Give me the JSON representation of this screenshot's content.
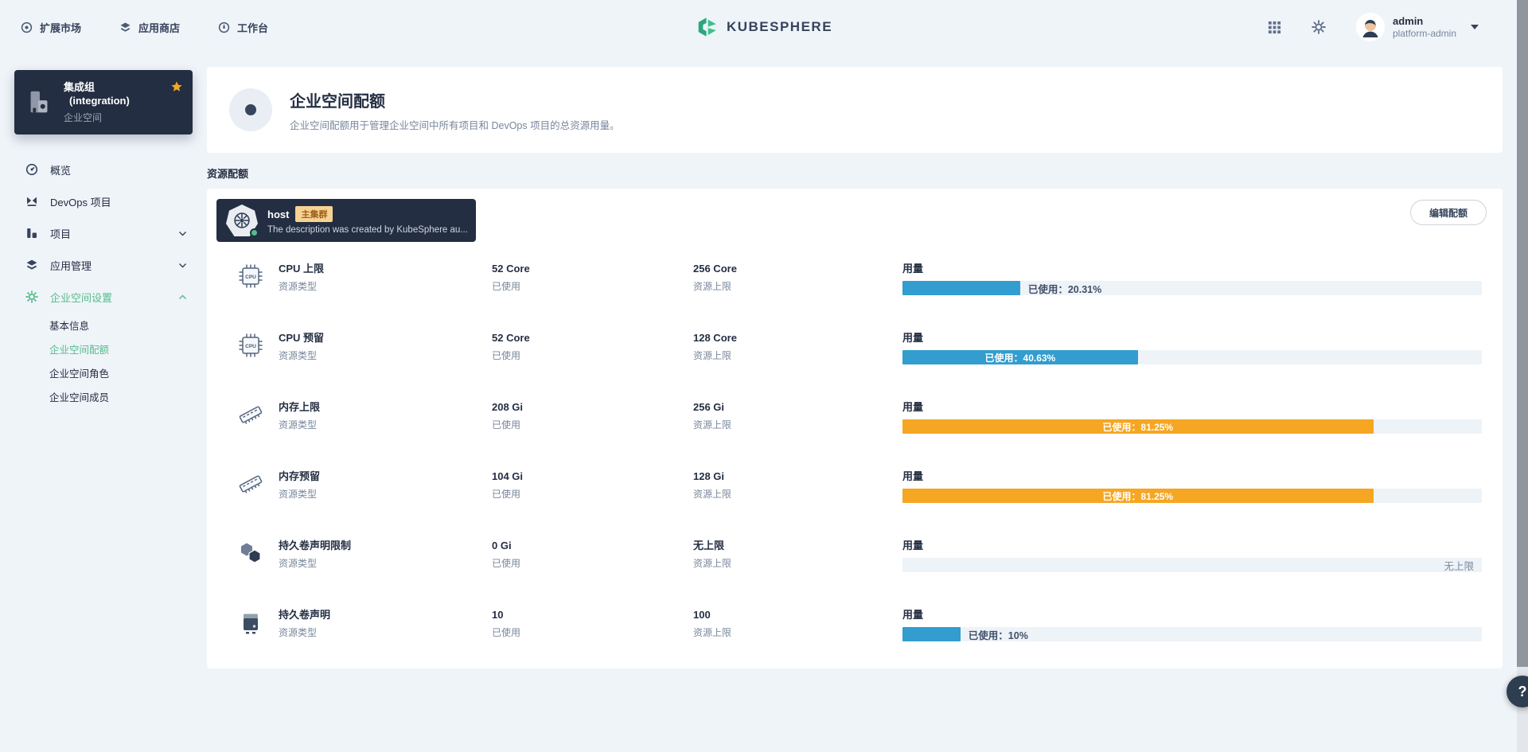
{
  "app": {
    "logo_text": "KUBESPHERE"
  },
  "colors": {
    "accent_green": "#55bc8a",
    "bar_blue": "#329dce",
    "bar_orange": "#f5a623",
    "dark_navy": "#242e42",
    "badge_bg": "#f6d392"
  },
  "topbar": {
    "nav_items": [
      {
        "icon": "extension-market-icon",
        "label": "扩展市场"
      },
      {
        "icon": "app-store-icon",
        "label": "应用商店"
      },
      {
        "icon": "workbench-icon",
        "label": "工作台"
      }
    ],
    "user": {
      "name": "admin",
      "role": "platform-admin"
    }
  },
  "sidebar": {
    "workspace_card": {
      "title": "集成组",
      "name": "(integration)",
      "type_label": "企业空间"
    },
    "menu_items": [
      {
        "icon": "overview-icon",
        "label": "概览"
      },
      {
        "icon": "devops-icon",
        "label": "DevOps 项目"
      },
      {
        "icon": "projects-icon",
        "label": "项目",
        "chevron": "down"
      },
      {
        "icon": "app-management-icon",
        "label": "应用管理",
        "chevron": "down"
      },
      {
        "icon": "settings-icon",
        "label": "企业空间设置",
        "chevron": "up",
        "active": true
      }
    ],
    "submenu_items": [
      {
        "label": "基本信息"
      },
      {
        "label": "企业空间配额",
        "active": true
      },
      {
        "label": "企业空间角色"
      },
      {
        "label": "企业空间成员"
      }
    ]
  },
  "page_header": {
    "title": "企业空间配额",
    "description": "企业空间配额用于管理企业空间中所有项目和 DevOps 项目的总资源用量。"
  },
  "quota_section": {
    "section_label": "资源配额",
    "cluster": {
      "name": "host",
      "badge": "主集群",
      "description": "The description was created by KubeSphere au..."
    },
    "edit_button_label": "编辑配额",
    "rows": [
      {
        "icon": "cpu-icon",
        "name": "CPU 上限",
        "type_label": "资源类型",
        "used_value": "52 Core",
        "used_label": "已使用",
        "limit_value": "256 Core",
        "limit_label": "资源上限",
        "usage_label": "用量",
        "percent": 20.31,
        "bar_color": "#329dce",
        "bar_text": "已使用：20.31%",
        "bar_text_style": "outside"
      },
      {
        "icon": "cpu-icon",
        "name": "CPU 预留",
        "type_label": "资源类型",
        "used_value": "52 Core",
        "used_label": "已使用",
        "limit_value": "128 Core",
        "limit_label": "资源上限",
        "usage_label": "用量",
        "percent": 40.63,
        "bar_color": "#329dce",
        "bar_text": "已使用：40.63%",
        "bar_text_style": "inside"
      },
      {
        "icon": "memory-icon",
        "name": "内存上限",
        "type_label": "资源类型",
        "used_value": "208 Gi",
        "used_label": "已使用",
        "limit_value": "256 Gi",
        "limit_label": "资源上限",
        "usage_label": "用量",
        "percent": 81.25,
        "bar_color": "#f5a623",
        "bar_text": "已使用：81.25%",
        "bar_text_style": "inside"
      },
      {
        "icon": "memory-icon",
        "name": "内存预留",
        "type_label": "资源类型",
        "used_value": "104 Gi",
        "used_label": "已使用",
        "limit_value": "128 Gi",
        "limit_label": "资源上限",
        "usage_label": "用量",
        "percent": 81.25,
        "bar_color": "#f5a623",
        "bar_text": "已使用：81.25%",
        "bar_text_style": "inside"
      },
      {
        "icon": "volume-limit-icon",
        "name": "持久卷声明限制",
        "type_label": "资源类型",
        "used_value": "0 Gi",
        "used_label": "已使用",
        "limit_value": "无上限",
        "limit_label": "资源上限",
        "usage_label": "用量",
        "percent": 0,
        "bar_color": null,
        "bar_text": "无上限",
        "bar_text_style": "track-right"
      },
      {
        "icon": "pvc-icon",
        "name": "持久卷声明",
        "type_label": "资源类型",
        "used_value": "10",
        "used_label": "已使用",
        "limit_value": "100",
        "limit_label": "资源上限",
        "usage_label": "用量",
        "percent": 10,
        "bar_color": "#329dce",
        "bar_text": "已使用：10%",
        "bar_text_style": "outside"
      }
    ]
  },
  "floating_button": {
    "label": "?"
  }
}
